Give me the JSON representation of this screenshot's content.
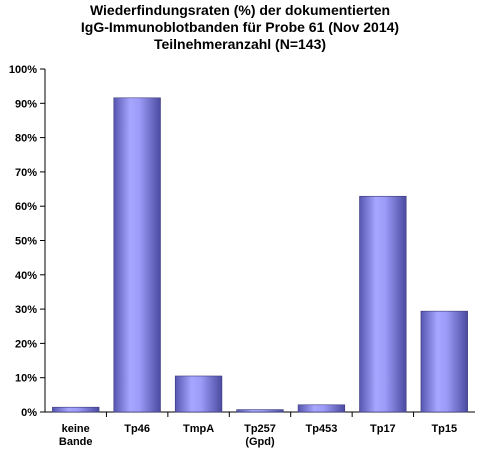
{
  "chart_data": {
    "type": "bar",
    "title_lines": [
      "Wiederfindungsraten (%)  der dokumentierten",
      "IgG-Immunoblotbanden  für Probe 61 (Nov 2014)",
      "Teilnehmeranzahl (N=143)"
    ],
    "categories": [
      [
        "keine",
        "Bande"
      ],
      [
        "Tp46"
      ],
      [
        "TmpA"
      ],
      [
        "Tp257",
        "(Gpd)"
      ],
      [
        "Tp453"
      ],
      [
        "Tp17"
      ],
      [
        "Tp15"
      ]
    ],
    "values": [
      1.4,
      91.6,
      10.5,
      0.7,
      2.1,
      62.9,
      29.4
    ],
    "ylim": [
      0,
      100
    ],
    "yticks": [
      0,
      10,
      20,
      30,
      40,
      50,
      60,
      70,
      80,
      90,
      100
    ],
    "ytick_labels": [
      "0%",
      "10%",
      "20%",
      "30%",
      "40%",
      "50%",
      "60%",
      "70%",
      "80%",
      "90%",
      "100%"
    ],
    "xlabel": "",
    "ylabel": "",
    "grid": false,
    "legend": "none",
    "bar_color": "#8a8af0",
    "bar_edge_color": "#3a3a7a"
  }
}
